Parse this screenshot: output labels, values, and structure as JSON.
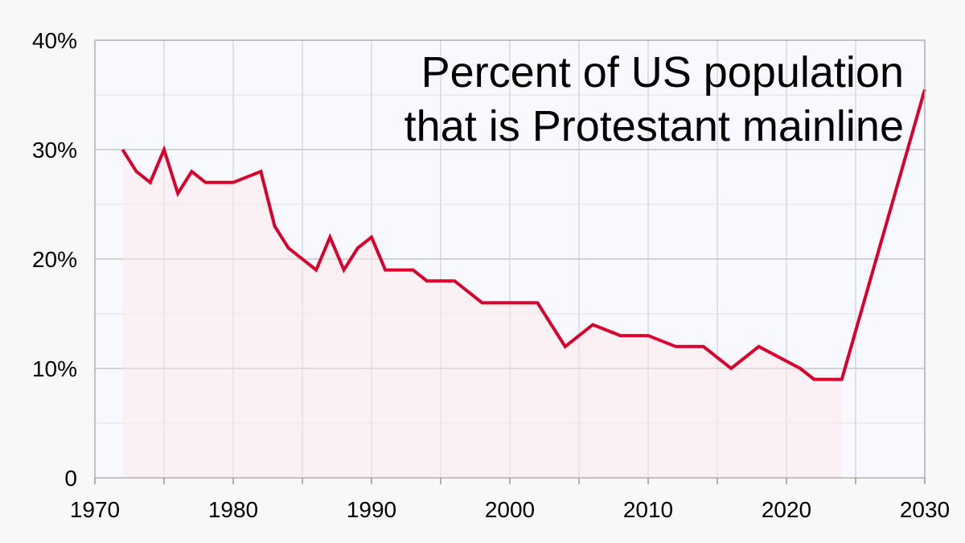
{
  "chart_data": {
    "type": "line",
    "title_lines": [
      "Percent of US population",
      "that is Protestant mainline"
    ],
    "xlabel": "",
    "ylabel": "",
    "xlim": [
      1970,
      2030
    ],
    "ylim": [
      0,
      40
    ],
    "x_ticks": [
      1970,
      1980,
      1990,
      2000,
      2010,
      2020,
      2030
    ],
    "x_tick_labels": [
      "1970",
      "1980",
      "1990",
      "2000",
      "2010",
      "2020",
      "2030"
    ],
    "y_ticks": [
      0,
      10,
      20,
      30,
      40
    ],
    "y_tick_labels": [
      "0",
      "10%",
      "20%",
      "30%",
      "40%"
    ],
    "grid": true,
    "series": [
      {
        "color": "#d9002b",
        "x": [
          1972,
          1973,
          1974,
          1975,
          1976,
          1977,
          1978,
          1980,
          1982,
          1983,
          1984,
          1986,
          1987,
          1988,
          1989,
          1990,
          1991,
          1993,
          1994,
          1996,
          1998,
          2000,
          2002,
          2004,
          2006,
          2008,
          2010,
          2012,
          2014,
          2016,
          2018,
          2021,
          2022,
          2024,
          2030
        ],
        "y": [
          30,
          28,
          27,
          30,
          26,
          28,
          27,
          27,
          28,
          23,
          21,
          19,
          22,
          19,
          21,
          22,
          19,
          19,
          18,
          18,
          16,
          16,
          16,
          12,
          14,
          13,
          13,
          12,
          12,
          10,
          12,
          10,
          9,
          9,
          35.5
        ]
      }
    ],
    "shaded_until": 2024
  }
}
